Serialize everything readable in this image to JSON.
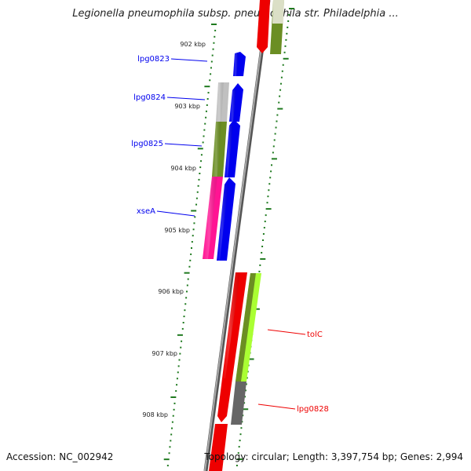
{
  "header": {
    "title": "Legionella pneumophila subsp. pneumophila str. Philadelphia ..."
  },
  "footer": {
    "accession": "Accession: NC_002942",
    "stats": "Topology: circular; Length: 3,397,754 bp; Genes: 2,994"
  },
  "ticks": [
    {
      "label": "902 kbp"
    },
    {
      "label": "903 kbp"
    },
    {
      "label": "904 kbp"
    },
    {
      "label": "905 kbp"
    },
    {
      "label": "906 kbp"
    },
    {
      "label": "907 kbp"
    },
    {
      "label": "908 kbp"
    }
  ],
  "genes": [
    {
      "name": "lpg0823",
      "strand": "forward",
      "color": "#0000ee"
    },
    {
      "name": "lpg0824",
      "strand": "forward",
      "color": "#0000ee"
    },
    {
      "name": "lpg0825",
      "strand": "forward",
      "color": "#0000ee"
    },
    {
      "name": "xseA",
      "strand": "forward",
      "color": "#0000ee"
    },
    {
      "name": "tolC",
      "strand": "reverse",
      "color": "#ee0000"
    },
    {
      "name": "lpg0828",
      "strand": "reverse",
      "color": "#ee0000"
    }
  ],
  "colors": {
    "forward": "#0000ee",
    "reverse": "#ee0000",
    "backbone": "#888888",
    "tick": "#1f7a1f",
    "cog_olive": "#6b8e23",
    "cog_magenta": "#ff1493",
    "cog_grey": "#c0c0c0",
    "cog_lime": "#aaff33",
    "cog_dark_grey": "#666666"
  }
}
